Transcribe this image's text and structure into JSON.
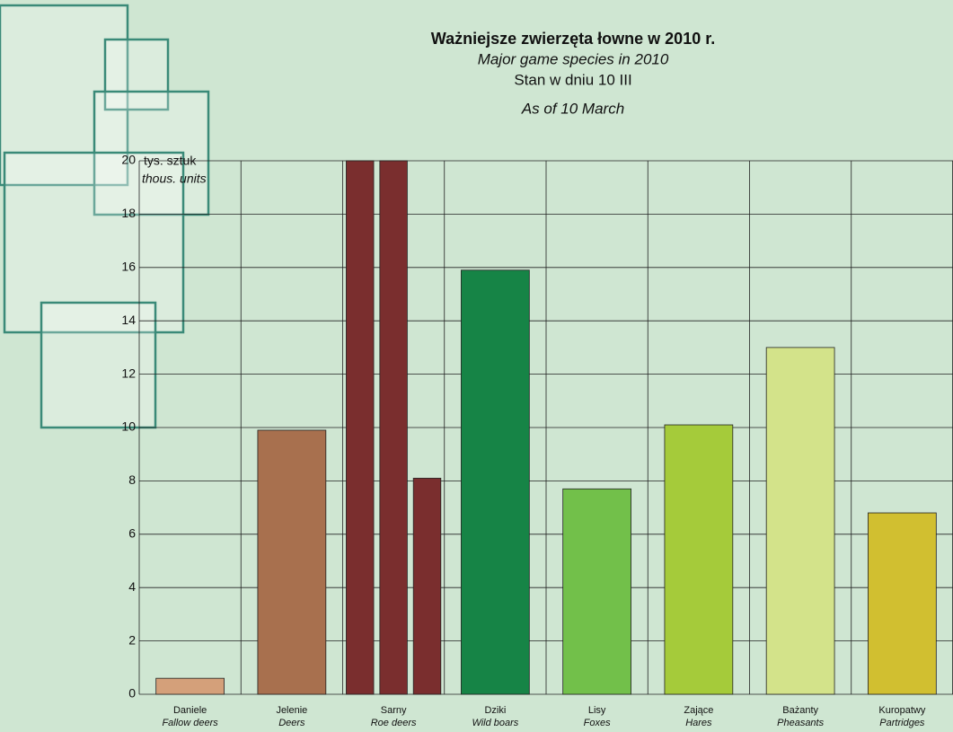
{
  "chart_data": {
    "type": "bar",
    "title": "Ważniejsze zwierzęta łowne w 2010 r.",
    "subtitle": "Major game species in 2010",
    "date_note": "Stan w dniu 10 III",
    "date_note_en": "As of 10 March",
    "y_label": "tys. sztuk",
    "y_label_en": "thous. units",
    "categories": [
      "Daniele",
      "Jelenie",
      "Sarny",
      "Dziki",
      "Lisy",
      "Zające",
      "Bażanty",
      "Kuropatwy"
    ],
    "categories_en": [
      "Fallow deers",
      "Deers",
      "Roe deers",
      "Wild boars",
      "Foxes",
      "Hares",
      "Pheasants",
      "Partridges"
    ],
    "values": [
      [
        0.6
      ],
      [
        9.9
      ],
      [
        20,
        20,
        8.1
      ],
      [
        15.9
      ],
      [
        7.7
      ],
      [
        10.1
      ],
      [
        13.0
      ],
      [
        6.8
      ]
    ],
    "colors": [
      "#d4a07a",
      "#a8704e",
      "#7a2e2e",
      "#168446",
      "#72c04a",
      "#a5cb3a",
      "#d3e38a",
      "#d1bf30"
    ],
    "ylim": [
      0,
      20
    ],
    "yticks": [
      0,
      2,
      4,
      6,
      8,
      10,
      12,
      14,
      16,
      18,
      20
    ],
    "grid": true
  }
}
